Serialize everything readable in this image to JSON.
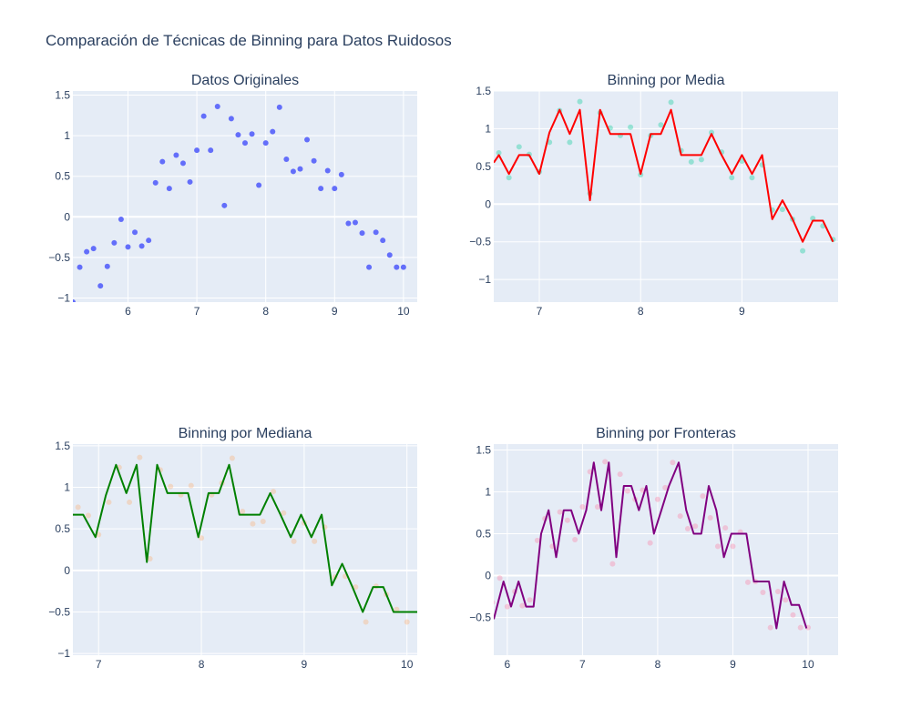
{
  "title": "Comparación de Técnicas de Binning para Datos Ruidosos",
  "colors": {
    "plot_bg": "#e5ecf6",
    "grid": "#ffffff",
    "text": "#2a3f5f"
  },
  "chart_data": [
    {
      "type": "scatter",
      "title": "Datos Originales",
      "xlim": [
        5.2,
        10.2
      ],
      "ylim": [
        -1.05,
        1.55
      ],
      "xticks": [
        6,
        7,
        8,
        9,
        10
      ],
      "yticks": [
        -1,
        -0.5,
        0,
        0.5,
        1,
        1.5
      ],
      "series": [
        {
          "mode": "markers",
          "color": "#636efa",
          "opacity": 1,
          "x": [
            5.2,
            5.3,
            5.4,
            5.5,
            5.6,
            5.7,
            5.8,
            5.9,
            6.0,
            6.1,
            6.2,
            6.3,
            6.4,
            6.5,
            6.6,
            6.7,
            6.8,
            6.9,
            7.0,
            7.1,
            7.2,
            7.3,
            7.4,
            7.5,
            7.6,
            7.7,
            7.8,
            7.9,
            8.0,
            8.1,
            8.2,
            8.3,
            8.4,
            8.5,
            8.6,
            8.7,
            8.8,
            8.9,
            9.0,
            9.1,
            9.2,
            9.3,
            9.4,
            9.5,
            9.6,
            9.7,
            9.8,
            9.9,
            10.0
          ],
          "y": [
            -1.05,
            -0.62,
            -0.43,
            -0.39,
            -0.85,
            -0.61,
            -0.32,
            -0.03,
            -0.37,
            -0.19,
            -0.36,
            -0.29,
            0.42,
            0.68,
            0.35,
            0.76,
            0.66,
            0.43,
            0.82,
            1.24,
            0.82,
            1.36,
            0.14,
            1.21,
            1.01,
            0.91,
            1.02,
            0.39,
            0.91,
            1.05,
            1.35,
            0.71,
            0.56,
            0.59,
            0.95,
            0.69,
            0.35,
            0.57,
            0.35,
            0.52,
            -0.08,
            -0.07,
            -0.2,
            -0.62,
            -0.19,
            -0.29,
            -0.47,
            -0.62,
            -0.62
          ]
        }
      ]
    },
    {
      "type": "line",
      "title": "Binning por Media",
      "xlim": [
        6.55,
        9.95
      ],
      "ylim": [
        -1.3,
        1.5
      ],
      "xticks": [
        7,
        8,
        9
      ],
      "yticks": [
        -1,
        -0.5,
        0,
        0.5,
        1,
        1.5
      ],
      "series": [
        {
          "mode": "markers",
          "color": "#00cc96",
          "opacity": 0.35,
          "x": [
            6.6,
            6.7,
            6.8,
            6.9,
            7.0,
            7.1,
            7.2,
            7.3,
            7.4,
            7.5,
            7.6,
            7.7,
            7.8,
            7.9,
            8.0,
            8.1,
            8.2,
            8.3,
            8.4,
            8.5,
            8.6,
            8.7,
            8.8,
            8.9,
            9.0,
            9.1,
            9.2,
            9.3,
            9.4,
            9.5,
            9.6,
            9.7,
            9.8,
            9.9
          ],
          "y": [
            0.68,
            0.35,
            0.76,
            0.66,
            0.43,
            0.82,
            1.24,
            0.82,
            1.36,
            0.14,
            1.21,
            1.01,
            0.91,
            1.02,
            0.39,
            0.91,
            1.05,
            1.35,
            0.71,
            0.56,
            0.59,
            0.95,
            0.69,
            0.35,
            0.57,
            0.35,
            0.52,
            -0.08,
            -0.07,
            -0.2,
            -0.62,
            -0.19,
            -0.29,
            -0.47
          ]
        },
        {
          "mode": "lines",
          "color": "#ff0000",
          "opacity": 1,
          "x": [
            6.55,
            6.6,
            6.7,
            6.8,
            6.9,
            7.0,
            7.1,
            7.2,
            7.3,
            7.4,
            7.5,
            7.6,
            7.7,
            7.8,
            7.9,
            8.0,
            8.1,
            8.2,
            8.3,
            8.4,
            8.5,
            8.6,
            8.7,
            8.8,
            8.9,
            9.0,
            9.1,
            9.2,
            9.3,
            9.4,
            9.5,
            9.6,
            9.7,
            9.8,
            9.9
          ],
          "y": [
            0.55,
            0.65,
            0.4,
            0.65,
            0.65,
            0.4,
            0.95,
            1.25,
            0.93,
            1.25,
            0.05,
            1.25,
            0.93,
            0.93,
            0.93,
            0.4,
            0.93,
            0.93,
            1.25,
            0.65,
            0.65,
            0.65,
            0.93,
            0.65,
            0.4,
            0.65,
            0.4,
            0.65,
            -0.2,
            0.05,
            -0.2,
            -0.5,
            -0.22,
            -0.22,
            -0.5
          ]
        }
      ]
    },
    {
      "type": "line",
      "title": "Binning por Mediana",
      "xlim": [
        6.75,
        10.1
      ],
      "ylim": [
        -1.02,
        1.52
      ],
      "xticks": [
        7,
        8,
        9,
        10
      ],
      "yticks": [
        -1,
        -0.5,
        0,
        0.5,
        1,
        1.5
      ],
      "series": [
        {
          "mode": "markers",
          "color": "#ffa15a",
          "opacity": 0.3,
          "x": [
            6.8,
            6.9,
            7.0,
            7.1,
            7.2,
            7.3,
            7.4,
            7.5,
            7.6,
            7.7,
            7.8,
            7.9,
            8.0,
            8.1,
            8.2,
            8.3,
            8.4,
            8.5,
            8.6,
            8.7,
            8.8,
            8.9,
            9.0,
            9.1,
            9.2,
            9.3,
            9.4,
            9.5,
            9.6,
            9.7,
            9.8,
            9.9,
            10.0
          ],
          "y": [
            0.76,
            0.66,
            0.43,
            0.82,
            1.24,
            0.82,
            1.36,
            0.14,
            1.21,
            1.01,
            0.91,
            1.02,
            0.39,
            0.91,
            1.05,
            1.35,
            0.71,
            0.56,
            0.59,
            0.95,
            0.69,
            0.35,
            0.57,
            0.35,
            0.52,
            -0.08,
            -0.07,
            -0.2,
            -0.62,
            -0.19,
            -0.29,
            -0.47,
            -0.62
          ]
        },
        {
          "mode": "lines",
          "color": "#008000",
          "opacity": 1,
          "x": [
            6.75,
            6.85,
            6.97,
            7.07,
            7.17,
            7.27,
            7.37,
            7.47,
            7.57,
            7.67,
            7.77,
            7.87,
            7.97,
            8.07,
            8.17,
            8.27,
            8.37,
            8.47,
            8.57,
            8.67,
            8.77,
            8.87,
            8.97,
            9.07,
            9.17,
            9.27,
            9.37,
            9.47,
            9.57,
            9.67,
            9.77,
            9.87,
            9.97,
            10.12
          ],
          "y": [
            0.67,
            0.67,
            0.4,
            0.9,
            1.27,
            0.93,
            1.27,
            0.1,
            1.27,
            0.93,
            0.93,
            0.93,
            0.4,
            0.93,
            0.93,
            1.27,
            0.67,
            0.67,
            0.67,
            0.93,
            0.67,
            0.4,
            0.67,
            0.4,
            0.67,
            -0.18,
            0.08,
            -0.2,
            -0.5,
            -0.2,
            -0.2,
            -0.5,
            -0.5,
            -0.5
          ]
        }
      ]
    },
    {
      "type": "line",
      "title": "Binning por Fronteras",
      "xlim": [
        5.82,
        10.4
      ],
      "ylim": [
        -0.95,
        1.57
      ],
      "xticks": [
        6,
        7,
        8,
        9,
        10
      ],
      "yticks": [
        -0.5,
        0,
        0.5,
        1,
        1.5
      ],
      "series": [
        {
          "mode": "markers",
          "color": "#ff6692",
          "opacity": 0.3,
          "x": [
            5.8,
            5.9,
            6.0,
            6.1,
            6.2,
            6.3,
            6.4,
            6.5,
            6.6,
            6.7,
            6.8,
            6.9,
            7.0,
            7.1,
            7.2,
            7.3,
            7.4,
            7.5,
            7.6,
            7.7,
            7.8,
            7.9,
            8.0,
            8.1,
            8.2,
            8.3,
            8.4,
            8.5,
            8.6,
            8.7,
            8.8,
            8.9,
            9.0,
            9.1,
            9.2,
            9.3,
            9.4,
            9.5,
            9.6,
            9.7,
            9.8,
            9.9,
            10.0
          ],
          "y": [
            -0.32,
            -0.03,
            -0.37,
            -0.19,
            -0.36,
            -0.29,
            0.42,
            0.68,
            0.35,
            0.76,
            0.66,
            0.43,
            0.82,
            1.24,
            0.82,
            1.36,
            0.14,
            1.21,
            1.01,
            0.91,
            1.02,
            0.39,
            0.91,
            1.05,
            1.35,
            0.71,
            0.56,
            0.59,
            0.95,
            0.69,
            0.35,
            0.57,
            0.35,
            0.52,
            -0.08,
            -0.07,
            -0.2,
            -0.62,
            -0.19,
            -0.29,
            -0.47,
            -0.62,
            -0.62
          ]
        },
        {
          "mode": "lines",
          "color": "#800080",
          "opacity": 1,
          "x": [
            5.82,
            5.95,
            6.05,
            6.15,
            6.25,
            6.35,
            6.45,
            6.55,
            6.65,
            6.75,
            6.85,
            6.95,
            7.05,
            7.15,
            7.25,
            7.35,
            7.45,
            7.55,
            7.65,
            7.75,
            7.85,
            7.95,
            8.05,
            8.15,
            8.28,
            8.38,
            8.48,
            8.58,
            8.68,
            8.78,
            8.88,
            8.98,
            9.08,
            9.18,
            9.28,
            9.38,
            9.48,
            9.58,
            9.68,
            9.78,
            9.88,
            9.98
          ],
          "y": [
            -0.52,
            -0.07,
            -0.37,
            -0.07,
            -0.37,
            -0.37,
            0.5,
            0.78,
            0.22,
            0.78,
            0.78,
            0.5,
            0.78,
            1.35,
            0.78,
            1.35,
            0.22,
            1.07,
            1.07,
            0.78,
            1.07,
            0.5,
            0.78,
            1.07,
            1.35,
            0.78,
            0.5,
            0.5,
            1.07,
            0.78,
            0.22,
            0.5,
            0.5,
            0.5,
            -0.07,
            -0.07,
            -0.07,
            -0.63,
            -0.07,
            -0.35,
            -0.35,
            -0.63
          ]
        }
      ]
    }
  ]
}
